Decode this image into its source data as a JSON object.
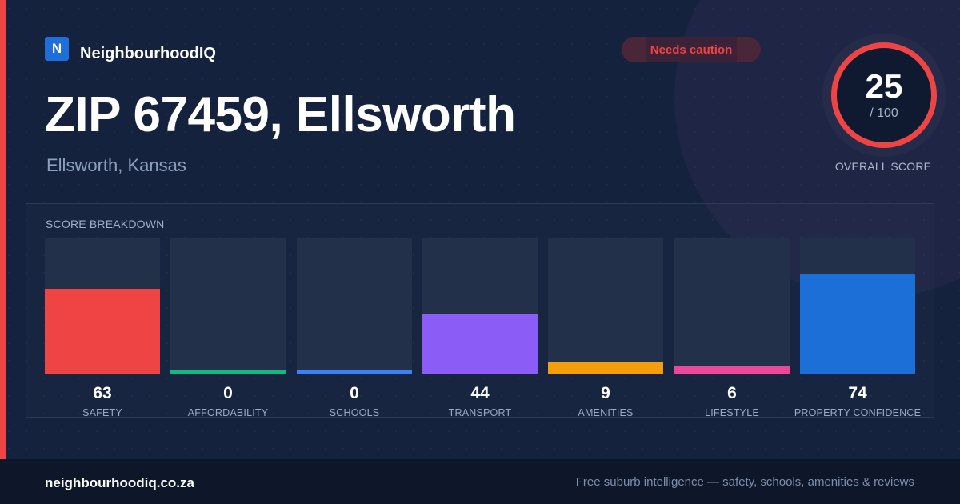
{
  "brand": {
    "logo_letter": "N",
    "name": "NeighbourhoodIQ"
  },
  "badge": {
    "label": "Needs caution",
    "color": "#ef4444"
  },
  "header": {
    "title": "ZIP 67459, Ellsworth",
    "subtitle": "Ellsworth, Kansas"
  },
  "overall": {
    "score": "25",
    "max": "/ 100",
    "label": "OVERALL SCORE",
    "ring_color": "#ef4444"
  },
  "breakdown": {
    "title": "SCORE BREAKDOWN",
    "items": [
      {
        "label": "SAFETY",
        "value": "63",
        "score": 63,
        "color": "#ef4444"
      },
      {
        "label": "AFFORDABILITY",
        "value": "0",
        "score": 0,
        "color": "#10b981"
      },
      {
        "label": "SCHOOLS",
        "value": "0",
        "score": 0,
        "color": "#3b82f6"
      },
      {
        "label": "TRANSPORT",
        "value": "44",
        "score": 44,
        "color": "#8b5cf6"
      },
      {
        "label": "AMENITIES",
        "value": "9",
        "score": 9,
        "color": "#f59e0b"
      },
      {
        "label": "LIFESTYLE",
        "value": "6",
        "score": 6,
        "color": "#ec4899"
      },
      {
        "label": "PROPERTY CONFIDENCE",
        "value": "74",
        "score": 74,
        "color": "#1d6fd8"
      }
    ]
  },
  "footer": {
    "url": "neighbourhoodiq.co.za",
    "tagline": "Free suburb intelligence — safety, schools, amenities & reviews"
  },
  "colors": {
    "background": "#15223d",
    "accent": "#ef4444",
    "footer_bg": "#0e1629"
  }
}
